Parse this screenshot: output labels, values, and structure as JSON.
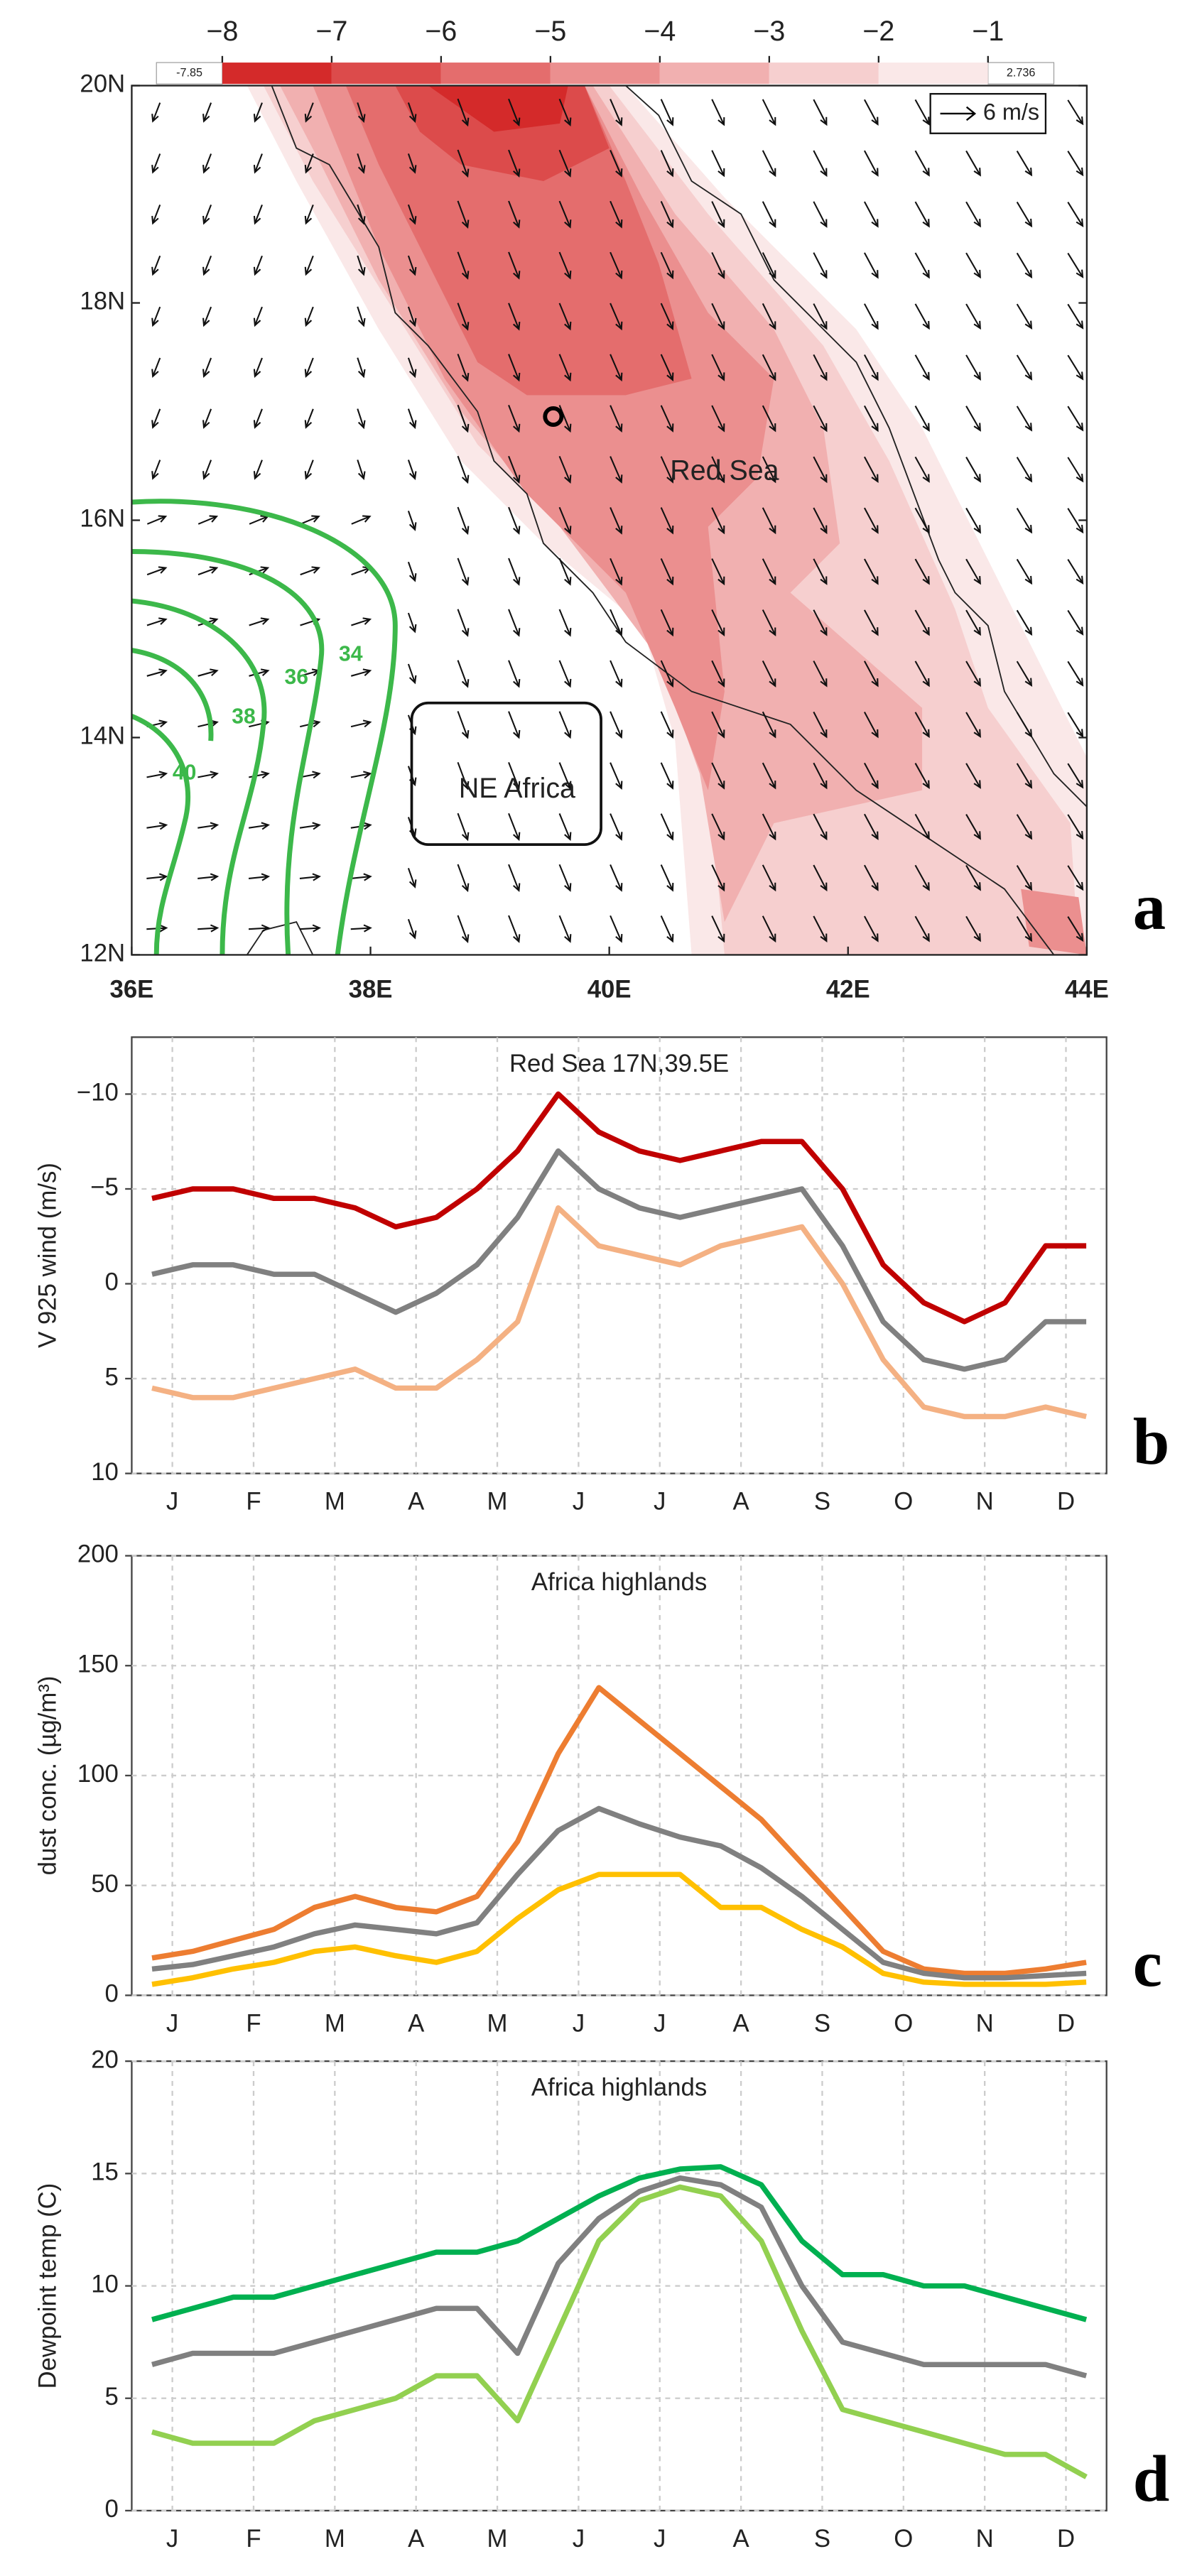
{
  "chart_data": [
    {
      "type": "map",
      "panel_label": "a",
      "xlim": [
        36,
        44
      ],
      "ylim": [
        12,
        20
      ],
      "xticks": [
        {
          "value": 36,
          "label": "36E"
        },
        {
          "value": 38,
          "label": "38E"
        },
        {
          "value": 40,
          "label": "40E"
        },
        {
          "value": 42,
          "label": "42E"
        },
        {
          "value": 44,
          "label": "44E"
        }
      ],
      "yticks": [
        {
          "value": 12,
          "label": "12N"
        },
        {
          "value": 14,
          "label": "14N"
        },
        {
          "value": 16,
          "label": "16N"
        },
        {
          "value": 18,
          "label": "18N"
        },
        {
          "value": 20,
          "label": "20N"
        }
      ],
      "colorbar": {
        "ticks": [
          {
            "value": -8,
            "label": "−8"
          },
          {
            "value": -7,
            "label": "−7"
          },
          {
            "value": -6,
            "label": "−6"
          },
          {
            "value": -5,
            "label": "−5"
          },
          {
            "value": -4,
            "label": "−4"
          },
          {
            "value": -3,
            "label": "−3"
          },
          {
            "value": -2,
            "label": "−2"
          },
          {
            "value": -1,
            "label": "−1"
          }
        ],
        "range": [
          -7.85,
          2.736
        ],
        "colors": [
          "#d42a2a",
          "#dc4b4b",
          "#e46d6d",
          "#eb8f8f",
          "#f1b0b0",
          "#f6cfcf",
          "#fae8e8"
        ]
      },
      "annotations": [
        "Red Sea",
        "NE Africa"
      ],
      "reference_vector": "6 m/s",
      "contour_levels": [
        34,
        36,
        38,
        40
      ],
      "contour_color": "#3cb84a"
    },
    {
      "type": "line",
      "panel_label": "b",
      "title": "Red Sea 17N,39.5E",
      "ylabel": "V 925 wind (m/s)",
      "xlim": [
        0,
        12
      ],
      "ylim": [
        10,
        -13
      ],
      "xticks": [
        {
          "value": 0.5,
          "label": "J"
        },
        {
          "value": 1.5,
          "label": "F"
        },
        {
          "value": 2.5,
          "label": "M"
        },
        {
          "value": 3.5,
          "label": "A"
        },
        {
          "value": 4.5,
          "label": "M"
        },
        {
          "value": 5.5,
          "label": "J"
        },
        {
          "value": 6.5,
          "label": "J"
        },
        {
          "value": 7.5,
          "label": "A"
        },
        {
          "value": 8.5,
          "label": "S"
        },
        {
          "value": 9.5,
          "label": "O"
        },
        {
          "value": 10.5,
          "label": "N"
        },
        {
          "value": 11.5,
          "label": "D"
        }
      ],
      "yticks": [
        {
          "value": -10,
          "label": "−10"
        },
        {
          "value": -5,
          "label": "−5"
        },
        0,
        5,
        10
      ],
      "grid": true,
      "x": [
        0.25,
        0.75,
        1.25,
        1.75,
        2.25,
        2.75,
        3.25,
        3.75,
        4.25,
        4.75,
        5.25,
        5.75,
        6.25,
        6.75,
        7.25,
        7.75,
        8.25,
        8.75,
        9.25,
        9.75,
        10.25,
        10.75,
        11.25,
        11.75
      ],
      "series": [
        {
          "color": "#c00000",
          "values": [
            -4.5,
            -5,
            -5,
            -4.5,
            -4.5,
            -4,
            -3,
            -3.5,
            -5,
            -7,
            -10,
            -8,
            -7,
            -6.5,
            -7,
            -7.5,
            -7.5,
            -5,
            -1,
            1,
            2,
            1,
            -2,
            -2
          ]
        },
        {
          "color": "#808080",
          "values": [
            -0.5,
            -1,
            -1,
            -0.5,
            -0.5,
            0.5,
            1.5,
            0.5,
            -1,
            -3.5,
            -7,
            -5,
            -4,
            -3.5,
            -4,
            -4.5,
            -5,
            -2,
            2,
            4,
            4.5,
            4,
            2,
            2
          ]
        },
        {
          "color": "#f4b183",
          "values": [
            5.5,
            6,
            6,
            5.5,
            5,
            4.5,
            5.5,
            5.5,
            4,
            2,
            -4,
            -2,
            -1.5,
            -1,
            -2,
            -2.5,
            -3,
            0,
            4,
            6.5,
            7,
            7,
            6.5,
            7
          ]
        }
      ]
    },
    {
      "type": "line",
      "panel_label": "c",
      "title": "Africa highlands",
      "ylabel": "dust conc. (µg/m³)",
      "xlim": [
        0,
        12
      ],
      "ylim": [
        0,
        200
      ],
      "xticks": [
        {
          "value": 0.5,
          "label": "J"
        },
        {
          "value": 1.5,
          "label": "F"
        },
        {
          "value": 2.5,
          "label": "M"
        },
        {
          "value": 3.5,
          "label": "A"
        },
        {
          "value": 4.5,
          "label": "M"
        },
        {
          "value": 5.5,
          "label": "J"
        },
        {
          "value": 6.5,
          "label": "J"
        },
        {
          "value": 7.5,
          "label": "A"
        },
        {
          "value": 8.5,
          "label": "S"
        },
        {
          "value": 9.5,
          "label": "O"
        },
        {
          "value": 10.5,
          "label": "N"
        },
        {
          "value": 11.5,
          "label": "D"
        }
      ],
      "yticks": [
        0,
        50,
        100,
        150,
        200
      ],
      "grid": true,
      "x": [
        0.25,
        0.75,
        1.25,
        1.75,
        2.25,
        2.75,
        3.25,
        3.75,
        4.25,
        4.75,
        5.25,
        5.75,
        6.25,
        6.75,
        7.25,
        7.75,
        8.25,
        8.75,
        9.25,
        9.75,
        10.25,
        10.75,
        11.25,
        11.75
      ],
      "series": [
        {
          "color": "#ed7d31",
          "values": [
            17,
            20,
            25,
            30,
            40,
            45,
            40,
            38,
            45,
            70,
            110,
            140,
            125,
            110,
            95,
            80,
            60,
            40,
            20,
            12,
            10,
            10,
            12,
            15
          ]
        },
        {
          "color": "#808080",
          "values": [
            12,
            14,
            18,
            22,
            28,
            32,
            30,
            28,
            33,
            55,
            75,
            85,
            78,
            72,
            68,
            58,
            45,
            30,
            15,
            10,
            8,
            8,
            9,
            10
          ]
        },
        {
          "color": "#ffc000",
          "values": [
            5,
            8,
            12,
            15,
            20,
            22,
            18,
            15,
            20,
            35,
            48,
            55,
            55,
            55,
            40,
            40,
            30,
            22,
            10,
            6,
            5,
            5,
            5,
            6
          ]
        }
      ]
    },
    {
      "type": "line",
      "panel_label": "d",
      "title": "Africa highlands",
      "ylabel": "Dewpoint temp (C)",
      "xlim": [
        0,
        12
      ],
      "ylim": [
        0,
        20
      ],
      "xticks": [
        {
          "value": 0.5,
          "label": "J"
        },
        {
          "value": 1.5,
          "label": "F"
        },
        {
          "value": 2.5,
          "label": "M"
        },
        {
          "value": 3.5,
          "label": "A"
        },
        {
          "value": 4.5,
          "label": "M"
        },
        {
          "value": 5.5,
          "label": "J"
        },
        {
          "value": 6.5,
          "label": "J"
        },
        {
          "value": 7.5,
          "label": "A"
        },
        {
          "value": 8.5,
          "label": "S"
        },
        {
          "value": 9.5,
          "label": "O"
        },
        {
          "value": 10.5,
          "label": "N"
        },
        {
          "value": 11.5,
          "label": "D"
        }
      ],
      "yticks": [
        0,
        5,
        10,
        15,
        20
      ],
      "grid": true,
      "x": [
        0.25,
        0.75,
        1.25,
        1.75,
        2.25,
        2.75,
        3.25,
        3.75,
        4.25,
        4.75,
        5.25,
        5.75,
        6.25,
        6.75,
        7.25,
        7.75,
        8.25,
        8.75,
        9.25,
        9.75,
        10.25,
        10.75,
        11.25,
        11.75
      ],
      "series": [
        {
          "color": "#00b050",
          "values": [
            8.5,
            9,
            9.5,
            9.5,
            10,
            10.5,
            11,
            11.5,
            11.5,
            12,
            13,
            14,
            14.8,
            15.2,
            15.3,
            14.5,
            12,
            10.5,
            10.5,
            10,
            10,
            9.5,
            9,
            8.5
          ]
        },
        {
          "color": "#808080",
          "values": [
            6.5,
            7,
            7,
            7,
            7.5,
            8,
            8.5,
            9,
            9,
            7,
            11,
            13,
            14.2,
            14.8,
            14.5,
            13.5,
            10,
            7.5,
            7,
            6.5,
            6.5,
            6.5,
            6.5,
            6
          ]
        },
        {
          "color": "#92d050",
          "values": [
            3.5,
            3,
            3,
            3,
            4,
            4.5,
            5,
            6,
            6,
            4,
            8,
            12,
            13.8,
            14.4,
            14,
            12,
            8,
            4.5,
            4,
            3.5,
            3,
            2.5,
            2.5,
            1.5
          ]
        }
      ]
    }
  ]
}
